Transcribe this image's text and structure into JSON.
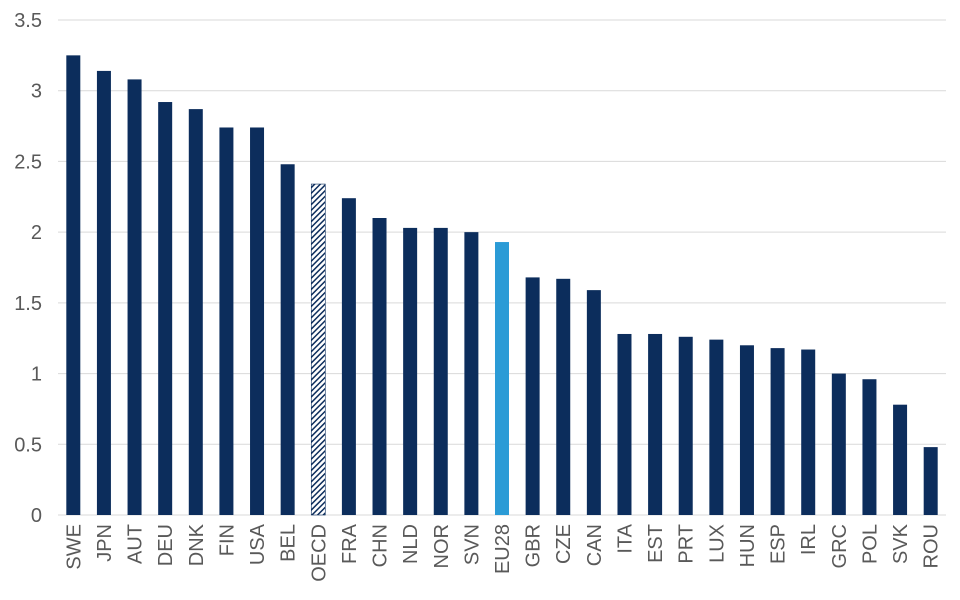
{
  "chart_data": {
    "type": "bar",
    "title": "",
    "xlabel": "",
    "ylabel": "",
    "ylim": [
      0,
      3.5
    ],
    "yticks": [
      0,
      0.5,
      1,
      1.5,
      2,
      2.5,
      3,
      3.5
    ],
    "ytick_labels": [
      "0",
      "0.5",
      "1",
      "1.5",
      "2",
      "2.5",
      "3",
      "3.5"
    ],
    "grid": "horizontal",
    "legend": "none",
    "categories": [
      "SWE",
      "JPN",
      "AUT",
      "DEU",
      "DNK",
      "FIN",
      "USA",
      "BEL",
      "OECD",
      "FRA",
      "CHN",
      "NLD",
      "NOR",
      "SVN",
      "EU28",
      "GBR",
      "CZE",
      "CAN",
      "ITA",
      "EST",
      "PRT",
      "LUX",
      "HUN",
      "ESP",
      "IRL",
      "GRC",
      "POL",
      "SVK",
      "ROU"
    ],
    "values": [
      3.25,
      3.14,
      3.08,
      2.92,
      2.87,
      2.74,
      2.74,
      2.48,
      2.34,
      2.24,
      2.1,
      2.03,
      2.03,
      2.0,
      1.93,
      1.68,
      1.67,
      1.59,
      1.28,
      1.28,
      1.26,
      1.24,
      1.2,
      1.18,
      1.17,
      1.0,
      0.96,
      0.78,
      0.48
    ],
    "colors": {
      "default": "#0c2d5c",
      "highlight": "#2b9bd6",
      "hatched": "#0c2d5c",
      "grid": "#d9d9d9",
      "text": "#595959"
    },
    "highlight_categories": [
      "EU28"
    ],
    "hatched_categories": [
      "OECD"
    ]
  }
}
